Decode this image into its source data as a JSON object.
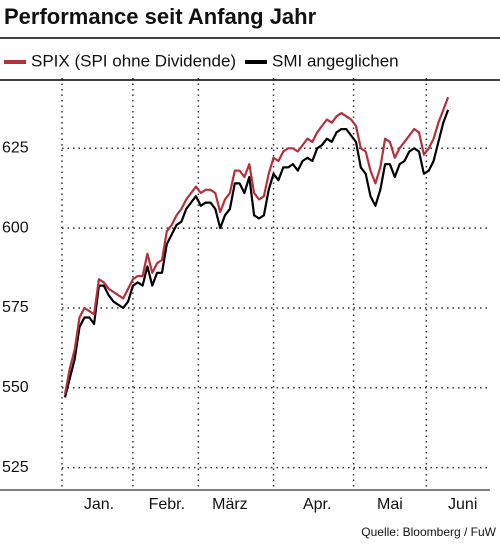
{
  "chart_data": {
    "type": "line",
    "title": "Performance seit Anfang Jahr",
    "source": "Quelle: Bloomberg / FuW",
    "categories": [
      null,
      null,
      null,
      null,
      null,
      null,
      null,
      "Jan.",
      null,
      null,
      null,
      null,
      null,
      null,
      null,
      null,
      null,
      null,
      null,
      null,
      null,
      "Febr.",
      null,
      null,
      null,
      null,
      null,
      null,
      null,
      null,
      null,
      null,
      null,
      null,
      "März",
      null,
      null,
      null,
      null,
      null,
      null,
      null,
      null,
      null,
      null,
      null,
      null,
      null,
      null,
      null,
      null,
      null,
      "Apr.",
      null,
      null,
      null,
      null,
      null,
      null,
      null,
      null,
      null,
      null,
      null,
      null,
      null,
      null,
      "Mai",
      null,
      null,
      null,
      null,
      null,
      null,
      null,
      null,
      null,
      null,
      null,
      null,
      null,
      null,
      "Juni",
      null
    ],
    "series": [
      {
        "name": "SPIX (SPI ohne Dividende)",
        "color": "#b5303a",
        "values": [
          548,
          556,
          562,
          572,
          575,
          574,
          573,
          584,
          583,
          581,
          580,
          579,
          578,
          581,
          584,
          585,
          585,
          592,
          586,
          589,
          590,
          599,
          601,
          604,
          606,
          609,
          611,
          613,
          611,
          612,
          612,
          611,
          605,
          609,
          611,
          618,
          618,
          616,
          620,
          611,
          609,
          610,
          617,
          622,
          621,
          624,
          625,
          625,
          624,
          626,
          628,
          627,
          630,
          632,
          634,
          633,
          635,
          636,
          635,
          634,
          632,
          625,
          624,
          618,
          614,
          619,
          628,
          627,
          622,
          625,
          627,
          629,
          631,
          630,
          623,
          625,
          628,
          633,
          637,
          641,
          null,
          null,
          null,
          null
        ]
      },
      {
        "name": "SMI angeglichen",
        "color": "#000000",
        "values": [
          547,
          553,
          559,
          569,
          572,
          572,
          570,
          582,
          582,
          579,
          577,
          576,
          575,
          577,
          582,
          583,
          582,
          588,
          582,
          586,
          586,
          595,
          598,
          601,
          602,
          606,
          608,
          610,
          607,
          608,
          608,
          606,
          600,
          604,
          606,
          614,
          614,
          611,
          616,
          604,
          603,
          604,
          612,
          617,
          615,
          619,
          619,
          620,
          618,
          621,
          622,
          621,
          625,
          626,
          628,
          627,
          630,
          631,
          631,
          629,
          627,
          619,
          617,
          610,
          607,
          612,
          620,
          620,
          616,
          620,
          621,
          624,
          625,
          624,
          617,
          618,
          621,
          627,
          633,
          637,
          null,
          null,
          null,
          null
        ]
      }
    ],
    "ylim": [
      518,
      647
    ],
    "yticks": [
      525,
      550,
      575,
      600,
      625
    ],
    "grid": true
  }
}
